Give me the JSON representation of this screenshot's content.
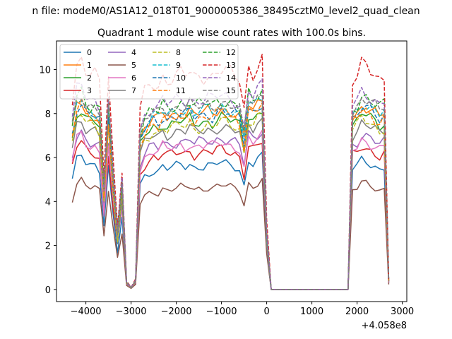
{
  "suptitle": "n file: modeM0/AS1A12_018T01_9000005386_38495cztM0_level2_quad_clean",
  "chart_data": {
    "type": "line",
    "title": "Quadrant 1 module wise count rates with 100.0s bins.",
    "xlabel": "",
    "ylabel": "",
    "offset_text": "+4.058e8",
    "xlim": [
      -4650,
      3100
    ],
    "ylim": [
      -0.55,
      11.3
    ],
    "x_ticks": [
      -4000,
      -3000,
      -2000,
      -1000,
      0,
      1000,
      2000,
      3000
    ],
    "x_tick_labels": [
      "−4000",
      "−3000",
      "−2000",
      "−1000",
      "0",
      "1000",
      "2000",
      "3000"
    ],
    "y_ticks": [
      0,
      2,
      4,
      6,
      8,
      10
    ],
    "y_tick_labels": [
      "0",
      "2",
      "4",
      "6",
      "8",
      "10"
    ],
    "grid": false,
    "legend_position": "top-left",
    "x_start": -4300,
    "x_step": 100,
    "gap_from": 600,
    "gap_to": 1800,
    "series": [
      {
        "name": "0",
        "color": "#1f77b4",
        "dash": "solid",
        "level": 5.6
      },
      {
        "name": "1",
        "color": "#ff7f0e",
        "dash": "solid",
        "level": 8.0
      },
      {
        "name": "2",
        "color": "#2ca02c",
        "dash": "solid",
        "level": 7.6
      },
      {
        "name": "3",
        "color": "#d62728",
        "dash": "solid",
        "level": 6.2
      },
      {
        "name": "4",
        "color": "#9467bd",
        "dash": "solid",
        "level": 6.7
      },
      {
        "name": "5",
        "color": "#8c564b",
        "dash": "solid",
        "level": 4.6
      },
      {
        "name": "6",
        "color": "#e377c2",
        "dash": "solid",
        "level": 6.5
      },
      {
        "name": "7",
        "color": "#7f7f7f",
        "dash": "solid",
        "level": 7.2
      },
      {
        "name": "8",
        "color": "#bcbd22",
        "dash": "dashed",
        "level": 7.4
      },
      {
        "name": "9",
        "color": "#17becf",
        "dash": "dashed",
        "level": 8.1
      },
      {
        "name": "10",
        "color": "#1f77b4",
        "dash": "dashed",
        "level": 7.9
      },
      {
        "name": "11",
        "color": "#ff7f0e",
        "dash": "dashed",
        "level": 7.8
      },
      {
        "name": "12",
        "color": "#2ca02c",
        "dash": "dashed",
        "level": 8.4
      },
      {
        "name": "13",
        "color": "#d62728",
        "dash": "dashed",
        "level": 9.7
      },
      {
        "name": "14",
        "color": "#9467bd",
        "dash": "dashed",
        "level": 8.6
      },
      {
        "name": "15",
        "color": "#7f7f7f",
        "dash": "dashed",
        "level": 8.3
      }
    ],
    "profile": [
      0.9,
      1.05,
      1.08,
      1.02,
      1.0,
      1.0,
      0.97,
      0.55,
      1.0,
      0.62,
      0.32,
      0.58,
      0.04,
      0.01,
      0.05,
      0.85,
      0.92,
      0.95,
      0.97,
      0.96,
      1.0,
      0.98,
      0.99,
      1.0,
      1.01,
      1.0,
      1.02,
      0.99,
      1.0,
      1.0,
      1.01,
      1.0,
      1.02,
      1.03,
      1.02,
      1.01,
      1.0,
      0.98,
      0.84,
      1.05,
      1.02,
      1.05,
      1.08,
      0.32,
      0.0,
      0.0,
      0.0,
      0.0,
      0.0,
      0.0,
      0.0,
      0.0,
      0.0,
      0.0,
      0.0,
      0.0,
      0.0,
      0.0,
      0.0,
      0.0,
      0.0,
      0.0,
      0.98,
      1.0,
      1.05,
      1.04,
      1.02,
      1.0,
      0.98,
      1.0,
      0.05
    ]
  }
}
